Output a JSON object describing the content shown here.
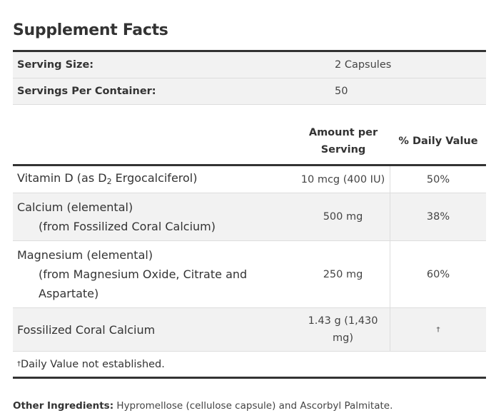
{
  "title": "Supplement Facts",
  "serving": {
    "size_label": "Serving Size:",
    "size_value": "2 Capsules",
    "per_container_label": "Servings Per Container:",
    "per_container_value": "50"
  },
  "header": {
    "amount_line1": "Amount per",
    "amount_line2": "Serving",
    "daily_value": "% Daily Value"
  },
  "nutrients": [
    {
      "name_pre": "Vitamin D (as D",
      "name_sub": "2",
      "name_post": " Ergocalciferol)",
      "amount": "10 mcg (400 IU)",
      "dv": "50%"
    },
    {
      "name": "Calcium (elemental)",
      "source": "(from Fossilized Coral Calcium)",
      "amount": "500 mg",
      "dv": "38%"
    },
    {
      "name": "Magnesium (elemental)",
      "source_line1": "(from Magnesium Oxide, Citrate and",
      "source_line2": "Aspartate)",
      "amount": "250 mg",
      "dv": "60%"
    },
    {
      "name": "Fossilized Coral Calcium",
      "amount_line1": "1.43 g (1,430",
      "amount_line2": "mg)",
      "dv": "†"
    }
  ],
  "footnote": {
    "dagger": "†",
    "text": "Daily Value not established."
  },
  "other_ingredients": {
    "label": "Other Ingredients:",
    "text": " Hypromellose (cellulose capsule) and Ascorbyl Palmitate."
  }
}
